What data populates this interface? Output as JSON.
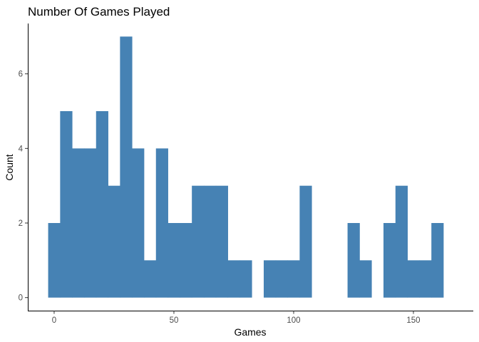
{
  "chart_data": {
    "type": "bar",
    "title": "Number Of Games Played",
    "xlabel": "Games",
    "ylabel": "Count",
    "bin_width": 5,
    "bins": [
      {
        "x": 0,
        "count": 2
      },
      {
        "x": 5,
        "count": 5
      },
      {
        "x": 10,
        "count": 4
      },
      {
        "x": 15,
        "count": 4
      },
      {
        "x": 20,
        "count": 5
      },
      {
        "x": 25,
        "count": 3
      },
      {
        "x": 30,
        "count": 7
      },
      {
        "x": 35,
        "count": 4
      },
      {
        "x": 40,
        "count": 1
      },
      {
        "x": 45,
        "count": 4
      },
      {
        "x": 50,
        "count": 2
      },
      {
        "x": 55,
        "count": 2
      },
      {
        "x": 60,
        "count": 3
      },
      {
        "x": 65,
        "count": 3
      },
      {
        "x": 70,
        "count": 3
      },
      {
        "x": 75,
        "count": 1
      },
      {
        "x": 80,
        "count": 1
      },
      {
        "x": 85,
        "count": 0
      },
      {
        "x": 90,
        "count": 1
      },
      {
        "x": 95,
        "count": 1
      },
      {
        "x": 100,
        "count": 1
      },
      {
        "x": 105,
        "count": 3
      },
      {
        "x": 110,
        "count": 0
      },
      {
        "x": 115,
        "count": 0
      },
      {
        "x": 120,
        "count": 0
      },
      {
        "x": 125,
        "count": 2
      },
      {
        "x": 130,
        "count": 1
      },
      {
        "x": 135,
        "count": 0
      },
      {
        "x": 140,
        "count": 2
      },
      {
        "x": 145,
        "count": 3
      },
      {
        "x": 150,
        "count": 1
      },
      {
        "x": 155,
        "count": 1
      },
      {
        "x": 160,
        "count": 2
      }
    ],
    "xlim": [
      -11,
      175
    ],
    "ylim": [
      -0.35,
      7.35
    ],
    "x_ticks": [
      0,
      50,
      100,
      150
    ],
    "y_ticks": [
      0,
      2,
      4,
      6
    ],
    "bar_color": "#4682B4",
    "grid": false
  }
}
